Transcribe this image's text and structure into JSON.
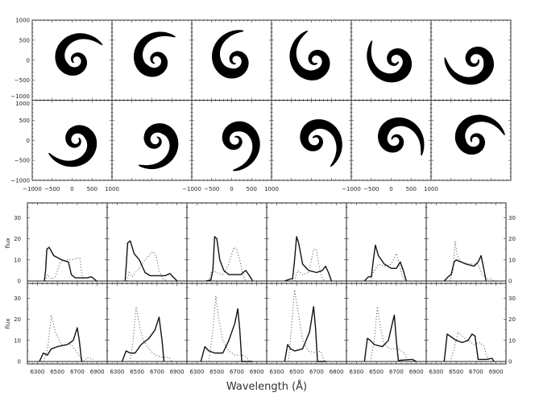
{
  "chart_data": [
    {
      "type": "scatter",
      "title": "",
      "description_grid": "2x6 panels of spiral (black filled) projections",
      "xlim": [
        -1000,
        1000
      ],
      "ylim": [
        -1000,
        1000
      ],
      "x_tick_labels": [
        "−1000",
        "−500",
        "0",
        "500",
        "1000"
      ],
      "y_tick_labels": [
        "1000",
        "500",
        "0",
        "−500",
        "−1000"
      ],
      "x_labels_on_columns": [
        1,
        3,
        5
      ],
      "panels_rotation_deg": [
        30,
        50,
        75,
        105,
        140,
        175,
        205,
        235,
        265,
        300,
        330,
        10
      ]
    },
    {
      "type": "line",
      "xlabel": "Wavelength (Å)",
      "ylabel": "flux",
      "xlim": [
        6200,
        7000
      ],
      "ylim": [
        0,
        37
      ],
      "y_tick_labels": [
        "0",
        "10",
        "20",
        "30"
      ],
      "x_tick_labels_by_column": [
        [
          "6300",
          "6500",
          "6700",
          "6900"
        ],
        [
          "6300",
          "6500",
          "6700",
          "6900"
        ],
        [
          "6300",
          "6500",
          "6700",
          "6900"
        ],
        [
          "6300",
          "6500",
          "6700",
          "6800"
        ],
        [
          "6300",
          "6500",
          "6700",
          "6900"
        ],
        [
          "6300",
          "6500",
          "6700",
          "6900"
        ]
      ],
      "series_styles": {
        "solid": "solid",
        "dotted": "dotted"
      },
      "panels": [
        {
          "solid": [
            [
              6370,
              0
            ],
            [
              6383,
              5
            ],
            [
              6395,
              15
            ],
            [
              6418,
              16
            ],
            [
              6464,
              12
            ],
            [
              6545,
              10
            ],
            [
              6612,
              9
            ],
            [
              6640,
              3
            ],
            [
              6680,
              1.5
            ],
            [
              6800,
              1.5
            ],
            [
              6840,
              2
            ],
            [
              6870,
              1
            ],
            [
              6895,
              0
            ]
          ],
          "dotted": [
            [
              6380,
              0
            ],
            [
              6400,
              3
            ],
            [
              6440,
              1
            ],
            [
              6480,
              2
            ],
            [
              6530,
              9
            ],
            [
              6600,
              10
            ],
            [
              6650,
              10
            ],
            [
              6700,
              11
            ],
            [
              6725,
              11
            ],
            [
              6745,
              4
            ],
            [
              6760,
              0
            ]
          ]
        },
        {
          "solid": [
            [
              6380,
              0
            ],
            [
              6392,
              8
            ],
            [
              6405,
              18
            ],
            [
              6432,
              19
            ],
            [
              6470,
              13
            ],
            [
              6523,
              10
            ],
            [
              6580,
              4
            ],
            [
              6631,
              2.5
            ],
            [
              6780,
              2.5
            ],
            [
              6830,
              3.5
            ],
            [
              6870,
              1.5
            ],
            [
              6903,
              0
            ]
          ],
          "dotted": [
            [
              6400,
              0
            ],
            [
              6420,
              4
            ],
            [
              6450,
              2
            ],
            [
              6520,
              6
            ],
            [
              6560,
              9
            ],
            [
              6620,
              12
            ],
            [
              6660,
              14
            ],
            [
              6690,
              12
            ],
            [
              6720,
              5
            ],
            [
              6760,
              1
            ],
            [
              6800,
              0
            ]
          ]
        },
        {
          "solid": [
            [
              6390,
              0
            ],
            [
              6440,
              0.5
            ],
            [
              6460,
              5
            ],
            [
              6478,
              21
            ],
            [
              6500,
              20
            ],
            [
              6530,
              10
            ],
            [
              6570,
              5
            ],
            [
              6620,
              3
            ],
            [
              6740,
              3
            ],
            [
              6790,
              5
            ],
            [
              6820,
              3
            ],
            [
              6860,
              0
            ]
          ],
          "dotted": [
            [
              6420,
              0
            ],
            [
              6450,
              5
            ],
            [
              6500,
              4
            ],
            [
              6560,
              3
            ],
            [
              6620,
              8
            ],
            [
              6670,
              16
            ],
            [
              6700,
              15
            ],
            [
              6730,
              10
            ],
            [
              6760,
              3
            ],
            [
              6790,
              0
            ]
          ]
        },
        {
          "solid": [
            [
              6380,
              0
            ],
            [
              6440,
              1
            ],
            [
              6460,
              1
            ],
            [
              6480,
              10
            ],
            [
              6500,
              21
            ],
            [
              6520,
              18
            ],
            [
              6560,
              8
            ],
            [
              6620,
              5
            ],
            [
              6700,
              4
            ],
            [
              6760,
              5
            ],
            [
              6790,
              7
            ],
            [
              6820,
              4
            ],
            [
              6850,
              0
            ]
          ],
          "dotted": [
            [
              6480,
              0
            ],
            [
              6510,
              5
            ],
            [
              6560,
              3
            ],
            [
              6620,
              4
            ],
            [
              6670,
              15
            ],
            [
              6700,
              15
            ],
            [
              6720,
              8
            ],
            [
              6750,
              2
            ],
            [
              6780,
              0
            ]
          ]
        },
        {
          "solid": [
            [
              6380,
              0
            ],
            [
              6420,
              2
            ],
            [
              6450,
              2
            ],
            [
              6470,
              10
            ],
            [
              6490,
              17
            ],
            [
              6520,
              12
            ],
            [
              6580,
              8
            ],
            [
              6650,
              6
            ],
            [
              6700,
              6
            ],
            [
              6740,
              9
            ],
            [
              6770,
              5
            ],
            [
              6800,
              0
            ]
          ],
          "dotted": [
            [
              6440,
              0
            ],
            [
              6470,
              4
            ],
            [
              6520,
              8
            ],
            [
              6580,
              7
            ],
            [
              6650,
              8
            ],
            [
              6700,
              13
            ],
            [
              6730,
              8
            ],
            [
              6760,
              2
            ],
            [
              6790,
              0
            ]
          ]
        },
        {
          "solid": [
            [
              6380,
              0
            ],
            [
              6420,
              2
            ],
            [
              6450,
              3
            ],
            [
              6480,
              9
            ],
            [
              6500,
              10
            ],
            [
              6600,
              8
            ],
            [
              6680,
              7
            ],
            [
              6720,
              9
            ],
            [
              6750,
              12
            ],
            [
              6780,
              5
            ],
            [
              6800,
              0
            ]
          ],
          "dotted": [
            [
              6440,
              0
            ],
            [
              6470,
              5
            ],
            [
              6490,
              19
            ],
            [
              6510,
              12
            ],
            [
              6550,
              9
            ],
            [
              6650,
              8
            ],
            [
              6720,
              8
            ],
            [
              6760,
              3
            ],
            [
              6800,
              1
            ],
            [
              6850,
              1
            ],
            [
              6880,
              0
            ]
          ]
        },
        {
          "solid": [
            [
              6320,
              0
            ],
            [
              6360,
              4
            ],
            [
              6400,
              3
            ],
            [
              6440,
              6
            ],
            [
              6500,
              7
            ],
            [
              6600,
              8
            ],
            [
              6660,
              10
            ],
            [
              6700,
              16
            ],
            [
              6720,
              10
            ],
            [
              6745,
              0
            ]
          ],
          "dotted": [
            [
              6360,
              0
            ],
            [
              6400,
              5
            ],
            [
              6440,
              22
            ],
            [
              6480,
              14
            ],
            [
              6540,
              8
            ],
            [
              6640,
              8
            ],
            [
              6700,
              4
            ],
            [
              6760,
              0
            ],
            [
              6800,
              2
            ],
            [
              6860,
              1
            ]
          ]
        },
        {
          "solid": [
            [
              6350,
              0
            ],
            [
              6390,
              5
            ],
            [
              6430,
              4
            ],
            [
              6480,
              4
            ],
            [
              6540,
              8
            ],
            [
              6620,
              11
            ],
            [
              6680,
              15
            ],
            [
              6720,
              21
            ],
            [
              6750,
              10
            ],
            [
              6770,
              0
            ]
          ],
          "dotted": [
            [
              6430,
              0
            ],
            [
              6460,
              10
            ],
            [
              6490,
              26
            ],
            [
              6520,
              18
            ],
            [
              6560,
              10
            ],
            [
              6620,
              6
            ],
            [
              6680,
              3
            ],
            [
              6760,
              2
            ],
            [
              6820,
              2
            ],
            [
              6850,
              0
            ]
          ]
        },
        {
          "solid": [
            [
              6340,
              0
            ],
            [
              6380,
              7
            ],
            [
              6420,
              5
            ],
            [
              6480,
              4
            ],
            [
              6560,
              4
            ],
            [
              6620,
              10
            ],
            [
              6680,
              18
            ],
            [
              6710,
              25
            ],
            [
              6730,
              15
            ],
            [
              6750,
              0
            ],
            [
              6860,
              0
            ]
          ],
          "dotted": [
            [
              6420,
              0
            ],
            [
              6460,
              15
            ],
            [
              6490,
              31
            ],
            [
              6520,
              20
            ],
            [
              6560,
              10
            ],
            [
              6620,
              5
            ],
            [
              6680,
              3
            ],
            [
              6760,
              3
            ],
            [
              6800,
              2
            ],
            [
              6830,
              0
            ]
          ]
        },
        {
          "solid": [
            [
              6380,
              0
            ],
            [
              6410,
              8
            ],
            [
              6440,
              6
            ],
            [
              6480,
              5
            ],
            [
              6560,
              6
            ],
            [
              6630,
              14
            ],
            [
              6670,
              26
            ],
            [
              6690,
              16
            ],
            [
              6710,
              0
            ],
            [
              6800,
              0
            ]
          ],
          "dotted": [
            [
              6420,
              0
            ],
            [
              6480,
              34
            ],
            [
              6520,
              22
            ],
            [
              6560,
              10
            ],
            [
              6620,
              5
            ],
            [
              6700,
              4
            ],
            [
              6740,
              5
            ],
            [
              6780,
              0
            ]
          ]
        },
        {
          "solid": [
            [
              6380,
              0
            ],
            [
              6410,
              11
            ],
            [
              6440,
              10
            ],
            [
              6480,
              8
            ],
            [
              6560,
              7
            ],
            [
              6620,
              10
            ],
            [
              6660,
              18
            ],
            [
              6680,
              22
            ],
            [
              6700,
              10
            ],
            [
              6720,
              0.5
            ],
            [
              6860,
              1
            ],
            [
              6900,
              0
            ]
          ],
          "dotted": [
            [
              6440,
              0
            ],
            [
              6480,
              10
            ],
            [
              6510,
              26
            ],
            [
              6540,
              16
            ],
            [
              6580,
              8
            ],
            [
              6640,
              6
            ],
            [
              6720,
              6
            ],
            [
              6780,
              4
            ],
            [
              6820,
              0
            ]
          ]
        },
        {
          "solid": [
            [
              6380,
              0
            ],
            [
              6410,
              13
            ],
            [
              6440,
              12
            ],
            [
              6500,
              10
            ],
            [
              6560,
              9
            ],
            [
              6620,
              10
            ],
            [
              6660,
              13
            ],
            [
              6690,
              12
            ],
            [
              6720,
              1
            ],
            [
              6800,
              1
            ],
            [
              6860,
              1.5
            ],
            [
              6880,
              0
            ]
          ],
          "dotted": [
            [
              6440,
              0
            ],
            [
              6480,
              6
            ],
            [
              6520,
              14
            ],
            [
              6560,
              12
            ],
            [
              6620,
              10
            ],
            [
              6680,
              8
            ],
            [
              6740,
              9
            ],
            [
              6780,
              7
            ],
            [
              6820,
              1
            ],
            [
              6840,
              0
            ]
          ]
        }
      ]
    }
  ]
}
